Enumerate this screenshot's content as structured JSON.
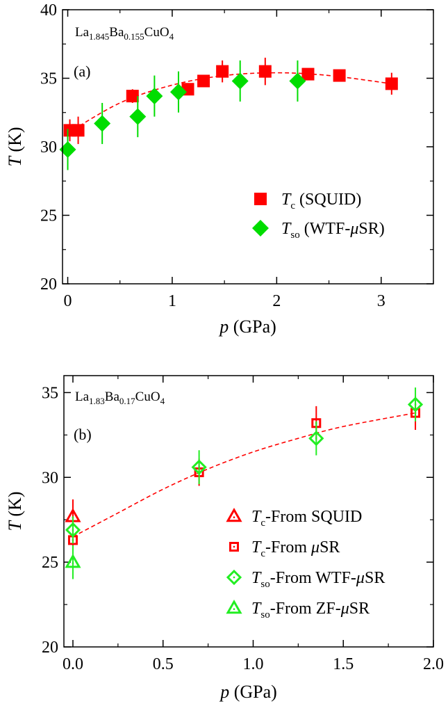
{
  "colors": {
    "red": "#ff0000",
    "green": "#00dd00",
    "green_marker": "#22ee22",
    "fit": "#ff0000",
    "axis": "#000000"
  },
  "chart_data": [
    {
      "type": "scatter",
      "sample": {
        "base": "La",
        "s1": "1.845",
        "mid": "Ba",
        "s2": "0.155",
        "tail": "CuO",
        "s3": "4"
      },
      "panel_label": "(a)",
      "xlabel": {
        "var": "p",
        "unit": " (GPa)"
      },
      "ylabel": {
        "var": "T",
        "unit": " (K)"
      },
      "xlim": [
        -0.05,
        3.5
      ],
      "ylim": [
        20,
        40
      ],
      "xticks": [
        0,
        1,
        2,
        3
      ],
      "yticks": [
        20,
        25,
        30,
        35,
        40
      ],
      "x_minor_step": 0.5,
      "y_minor_step": 2.5,
      "grid": false,
      "legend_placement": "lower-right",
      "series": [
        {
          "id": "tc_squid",
          "name": {
            "var": "T",
            "sub": "c",
            "rest": " (SQUID)"
          },
          "marker": "square",
          "filled": true,
          "color": "#ff0000",
          "x": [
            0.02,
            0.1,
            0.62,
            1.15,
            1.3,
            1.48,
            1.89,
            2.3,
            2.6,
            3.1
          ],
          "y": [
            31.2,
            31.2,
            33.7,
            34.2,
            34.8,
            35.5,
            35.5,
            35.3,
            35.2,
            34.6
          ],
          "yerr": [
            0.8,
            1.0,
            0.5,
            0.3,
            0.3,
            0.8,
            1.0,
            0.3,
            0.3,
            0.8
          ]
        },
        {
          "id": "tso_wtf",
          "name": {
            "var": "T",
            "sub": "so",
            "rest": " (WTF-",
            "mu": "μ",
            "end": "SR)"
          },
          "marker": "diamond",
          "filled": true,
          "color": "#00dd00",
          "x": [
            0.0,
            0.33,
            0.67,
            0.83,
            1.06,
            1.65,
            2.2
          ],
          "y": [
            29.8,
            31.7,
            32.2,
            33.7,
            34.0,
            34.8,
            34.8
          ],
          "yerr": [
            1.5,
            1.5,
            1.5,
            1.5,
            1.5,
            1.5,
            1.5
          ]
        }
      ],
      "fit_curve": {
        "style": "dashed",
        "color": "#ff0000",
        "x_range": [
          0,
          3.1
        ],
        "points": [
          [
            0,
            31.0
          ],
          [
            0.5,
            33.2
          ],
          [
            1.0,
            34.5
          ],
          [
            1.5,
            35.2
          ],
          [
            2.0,
            35.4
          ],
          [
            2.5,
            35.2
          ],
          [
            3.1,
            34.6
          ]
        ]
      }
    },
    {
      "type": "scatter",
      "sample": {
        "base": "La",
        "s1": "1.83",
        "mid": "Ba",
        "s2": "0.17",
        "tail": "CuO",
        "s3": "4"
      },
      "panel_label": "(b)",
      "xlabel": {
        "var": "p",
        "unit": " (GPa)"
      },
      "ylabel": {
        "var": "T",
        "unit": " (K)"
      },
      "xlim": [
        -0.05,
        2.0
      ],
      "ylim": [
        20,
        36
      ],
      "xticks": [
        0.0,
        0.5,
        1.0,
        1.5,
        2.0
      ],
      "xtick_labels": [
        "0.0",
        "0.5",
        "1.0",
        "1.5",
        "2.0"
      ],
      "yticks": [
        20,
        25,
        30,
        35
      ],
      "x_minor_step": 0.25,
      "y_minor_step": 2.5,
      "grid": false,
      "legend_placement": "lower-right",
      "series": [
        {
          "id": "tc_squid_b",
          "name": {
            "var": "T",
            "sub": "c",
            "rest": "-From SQUID"
          },
          "marker": "triangle",
          "filled": false,
          "color": "#ff0000",
          "x": [
            0.0
          ],
          "y": [
            27.7
          ],
          "yerr": [
            1.0
          ]
        },
        {
          "id": "tc_musr",
          "name": {
            "var": "T",
            "sub": "c",
            "rest": "-From ",
            "mu": "μ",
            "end": "SR"
          },
          "marker": "square",
          "filled": false,
          "color": "#ff0000",
          "x": [
            0.0,
            0.7,
            1.35,
            1.9
          ],
          "y": [
            26.3,
            30.3,
            33.2,
            33.8
          ],
          "yerr": [
            0.6,
            0.8,
            1.0,
            1.0
          ]
        },
        {
          "id": "tso_wtf_b",
          "name": {
            "var": "T",
            "sub": "so",
            "rest": "-From WTF-",
            "mu": "μ",
            "end": "SR"
          },
          "marker": "diamond",
          "filled": false,
          "color": "#22ee22",
          "x": [
            0.0,
            0.7,
            1.35,
            1.9
          ],
          "y": [
            26.9,
            30.6,
            32.3,
            34.3
          ],
          "yerr": [
            0.8,
            1.0,
            1.0,
            1.0
          ]
        },
        {
          "id": "tso_zf",
          "name": {
            "var": "T",
            "sub": "so",
            "rest": "-From ZF-",
            "mu": "μ",
            "end": "SR"
          },
          "marker": "triangle",
          "filled": false,
          "color": "#22ee22",
          "x": [
            0.0
          ],
          "y": [
            25.0
          ],
          "yerr": [
            1.0
          ]
        }
      ],
      "fit_curve": {
        "style": "dashed",
        "color": "#ff0000",
        "x_range": [
          0,
          1.9
        ],
        "points": [
          [
            0,
            26.5
          ],
          [
            0.25,
            27.9
          ],
          [
            0.5,
            29.3
          ],
          [
            0.75,
            30.5
          ],
          [
            1.0,
            31.5
          ],
          [
            1.25,
            32.3
          ],
          [
            1.5,
            33.0
          ],
          [
            1.9,
            33.8
          ]
        ]
      }
    }
  ]
}
